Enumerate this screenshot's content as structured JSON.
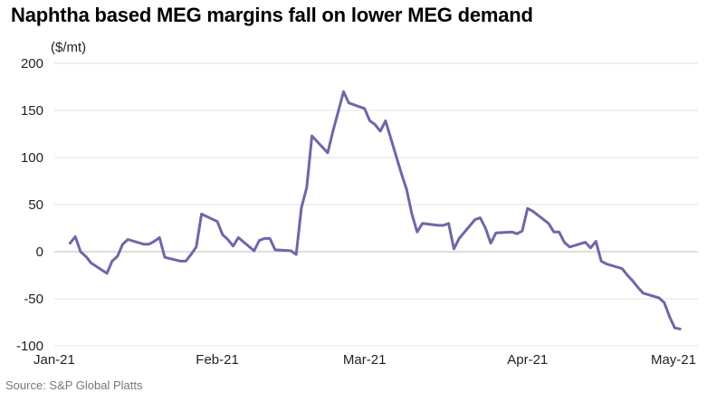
{
  "title": "Naphtha based MEG margins fall on lower MEG demand",
  "unit_label": "($/mt)",
  "source": "Source: S&P Global Platts",
  "chart_data": {
    "type": "line",
    "ylim": [
      -100,
      200
    ],
    "yticks": [
      200,
      150,
      100,
      50,
      0,
      -50,
      -100
    ],
    "xlim": [
      "2021-01-01",
      "2021-05-01"
    ],
    "xticks": [
      {
        "label": "Jan-21",
        "date": "2021-01-01"
      },
      {
        "label": "Feb-21",
        "date": "2021-02-01"
      },
      {
        "label": "Mar-21",
        "date": "2021-03-01"
      },
      {
        "label": "Apr-21",
        "date": "2021-04-01"
      },
      {
        "label": "May-21",
        "date": "2021-05-01"
      }
    ],
    "grid": true,
    "line_color": "#6b68aa",
    "grid_color": "#e3e3e3",
    "series": [
      {
        "x": [
          "2021-01-04",
          "2021-01-05",
          "2021-01-06",
          "2021-01-07",
          "2021-01-08",
          "2021-01-11",
          "2021-01-12",
          "2021-01-13",
          "2021-01-14",
          "2021-01-15",
          "2021-01-18",
          "2021-01-19",
          "2021-01-20",
          "2021-01-21",
          "2021-01-22",
          "2021-01-25",
          "2021-01-26",
          "2021-01-27",
          "2021-01-28",
          "2021-01-29",
          "2021-02-01",
          "2021-02-02",
          "2021-02-03",
          "2021-02-04",
          "2021-02-05",
          "2021-02-08",
          "2021-02-09",
          "2021-02-10",
          "2021-02-11",
          "2021-02-12",
          "2021-02-15",
          "2021-02-16",
          "2021-02-17",
          "2021-02-18",
          "2021-02-19",
          "2021-02-22",
          "2021-02-23",
          "2021-02-24",
          "2021-02-25",
          "2021-02-26",
          "2021-03-01",
          "2021-03-02",
          "2021-03-03",
          "2021-03-04",
          "2021-03-05",
          "2021-03-08",
          "2021-03-09",
          "2021-03-10",
          "2021-03-11",
          "2021-03-12",
          "2021-03-15",
          "2021-03-16",
          "2021-03-17",
          "2021-03-18",
          "2021-03-19",
          "2021-03-22",
          "2021-03-23",
          "2021-03-24",
          "2021-03-25",
          "2021-03-26",
          "2021-03-29",
          "2021-03-30",
          "2021-03-31",
          "2021-04-01",
          "2021-04-02",
          "2021-04-05",
          "2021-04-06",
          "2021-04-07",
          "2021-04-08",
          "2021-04-09",
          "2021-04-12",
          "2021-04-13",
          "2021-04-14",
          "2021-04-15",
          "2021-04-16",
          "2021-04-19",
          "2021-04-20",
          "2021-04-21",
          "2021-04-22",
          "2021-04-23",
          "2021-04-26",
          "2021-04-27",
          "2021-04-28",
          "2021-04-29",
          "2021-04-30"
        ],
        "values": [
          9,
          16,
          0,
          -5,
          -12,
          -23,
          -10,
          -5,
          8,
          13,
          8,
          8,
          11,
          15,
          -6,
          -10,
          -10,
          -3,
          5,
          40,
          32,
          18,
          13,
          6,
          15,
          1,
          12,
          14,
          14,
          2,
          1,
          -3,
          47,
          68,
          123,
          105,
          128,
          149,
          170,
          158,
          152,
          139,
          135,
          128,
          139,
          83,
          66,
          40,
          21,
          30,
          28,
          28,
          30,
          3,
          14,
          34,
          36,
          25,
          9,
          20,
          21,
          19,
          22,
          46,
          43,
          30,
          21,
          21,
          10,
          5,
          10,
          4,
          11,
          -10,
          -13,
          -18,
          -25,
          -31,
          -38,
          -44,
          -49,
          -54,
          -69,
          -81,
          -82
        ]
      }
    ]
  }
}
